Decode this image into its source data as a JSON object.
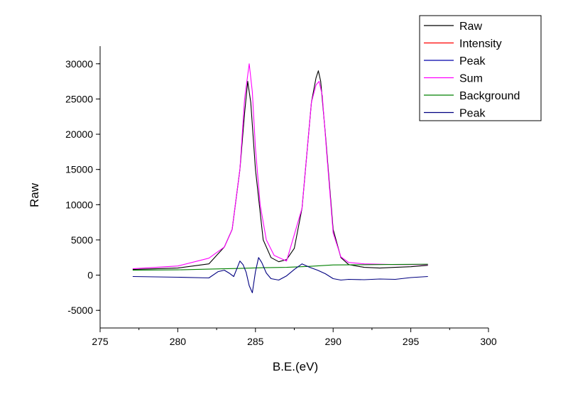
{
  "chart_data": {
    "type": "line",
    "title": "",
    "xlabel": "B.E.(eV)",
    "ylabel": "Raw",
    "xlim": [
      275,
      300
    ],
    "ylim": [
      -7500,
      32500
    ],
    "xticks": [
      275,
      280,
      285,
      290,
      295,
      300
    ],
    "yticks": [
      -5000,
      0,
      5000,
      10000,
      15000,
      20000,
      25000,
      30000
    ],
    "grid": false,
    "legend_position": "top-right",
    "legend": [
      {
        "name": "Raw",
        "color": "#000000"
      },
      {
        "name": "Intensity",
        "color": "#ff0000"
      },
      {
        "name": "Peak",
        "color": "#0000aa"
      },
      {
        "name": "Sum",
        "color": "#ff00ff"
      },
      {
        "name": "Background",
        "color": "#008000"
      },
      {
        "name": "Peak",
        "color": "#000080"
      }
    ],
    "series": [
      {
        "name": "Raw",
        "color": "#000000",
        "x": [
          277.1,
          280,
          282,
          282.5,
          283,
          283.5,
          284,
          284.3,
          284.5,
          284.7,
          285,
          285.5,
          286,
          286.5,
          287,
          287.5,
          288,
          288.3,
          288.6,
          288.9,
          289.05,
          289.2,
          289.5,
          290,
          290.5,
          291,
          292,
          293,
          294,
          295,
          296.1
        ],
        "y": [
          800,
          1000,
          1600,
          2800,
          4000,
          6500,
          15000,
          23000,
          27500,
          24500,
          15000,
          5000,
          2500,
          1900,
          2200,
          3800,
          9500,
          17000,
          24500,
          28000,
          29000,
          27500,
          20000,
          6500,
          2500,
          1500,
          1100,
          1000,
          1100,
          1200,
          1400
        ]
      },
      {
        "name": "Sum",
        "color": "#ff00ff",
        "x": [
          277.1,
          280,
          282,
          283,
          283.5,
          284,
          284.3,
          284.6,
          284.8,
          285,
          285.3,
          285.7,
          286.2,
          287,
          288,
          288.3,
          288.6,
          288.9,
          289.1,
          289.3,
          289.6,
          290,
          290.5,
          291,
          292,
          294,
          296.1
        ],
        "y": [
          900,
          1300,
          2400,
          4000,
          6500,
          15000,
          25000,
          30000,
          26000,
          18000,
          10000,
          5000,
          2800,
          2000,
          9500,
          17000,
          24500,
          27000,
          27500,
          25500,
          17000,
          6000,
          2600,
          1800,
          1600,
          1500,
          1500
        ]
      },
      {
        "name": "Background",
        "color": "#008000",
        "x": [
          277.1,
          280,
          282,
          284,
          285.5,
          287,
          288.5,
          290,
          293,
          296.1
        ],
        "y": [
          700,
          750,
          850,
          950,
          1050,
          1100,
          1250,
          1450,
          1500,
          1550
        ]
      },
      {
        "name": "Peak",
        "color": "#000080",
        "x": [
          277.1,
          280,
          282,
          282.6,
          283,
          283.3,
          283.6,
          284,
          284.2,
          284.4,
          284.6,
          284.8,
          285,
          285.2,
          285.4,
          285.7,
          286,
          286.5,
          287,
          287.5,
          288,
          288.5,
          289,
          289.5,
          290,
          290.5,
          291,
          292,
          293,
          294,
          295,
          296.1
        ],
        "y": [
          -200,
          -300,
          -400,
          500,
          700,
          300,
          -200,
          2000,
          1500,
          400,
          -1500,
          -2500,
          500,
          2500,
          1800,
          300,
          -500,
          -700,
          -100,
          800,
          1600,
          1100,
          700,
          200,
          -500,
          -700,
          -600,
          -650,
          -550,
          -600,
          -350,
          -200
        ]
      }
    ]
  }
}
